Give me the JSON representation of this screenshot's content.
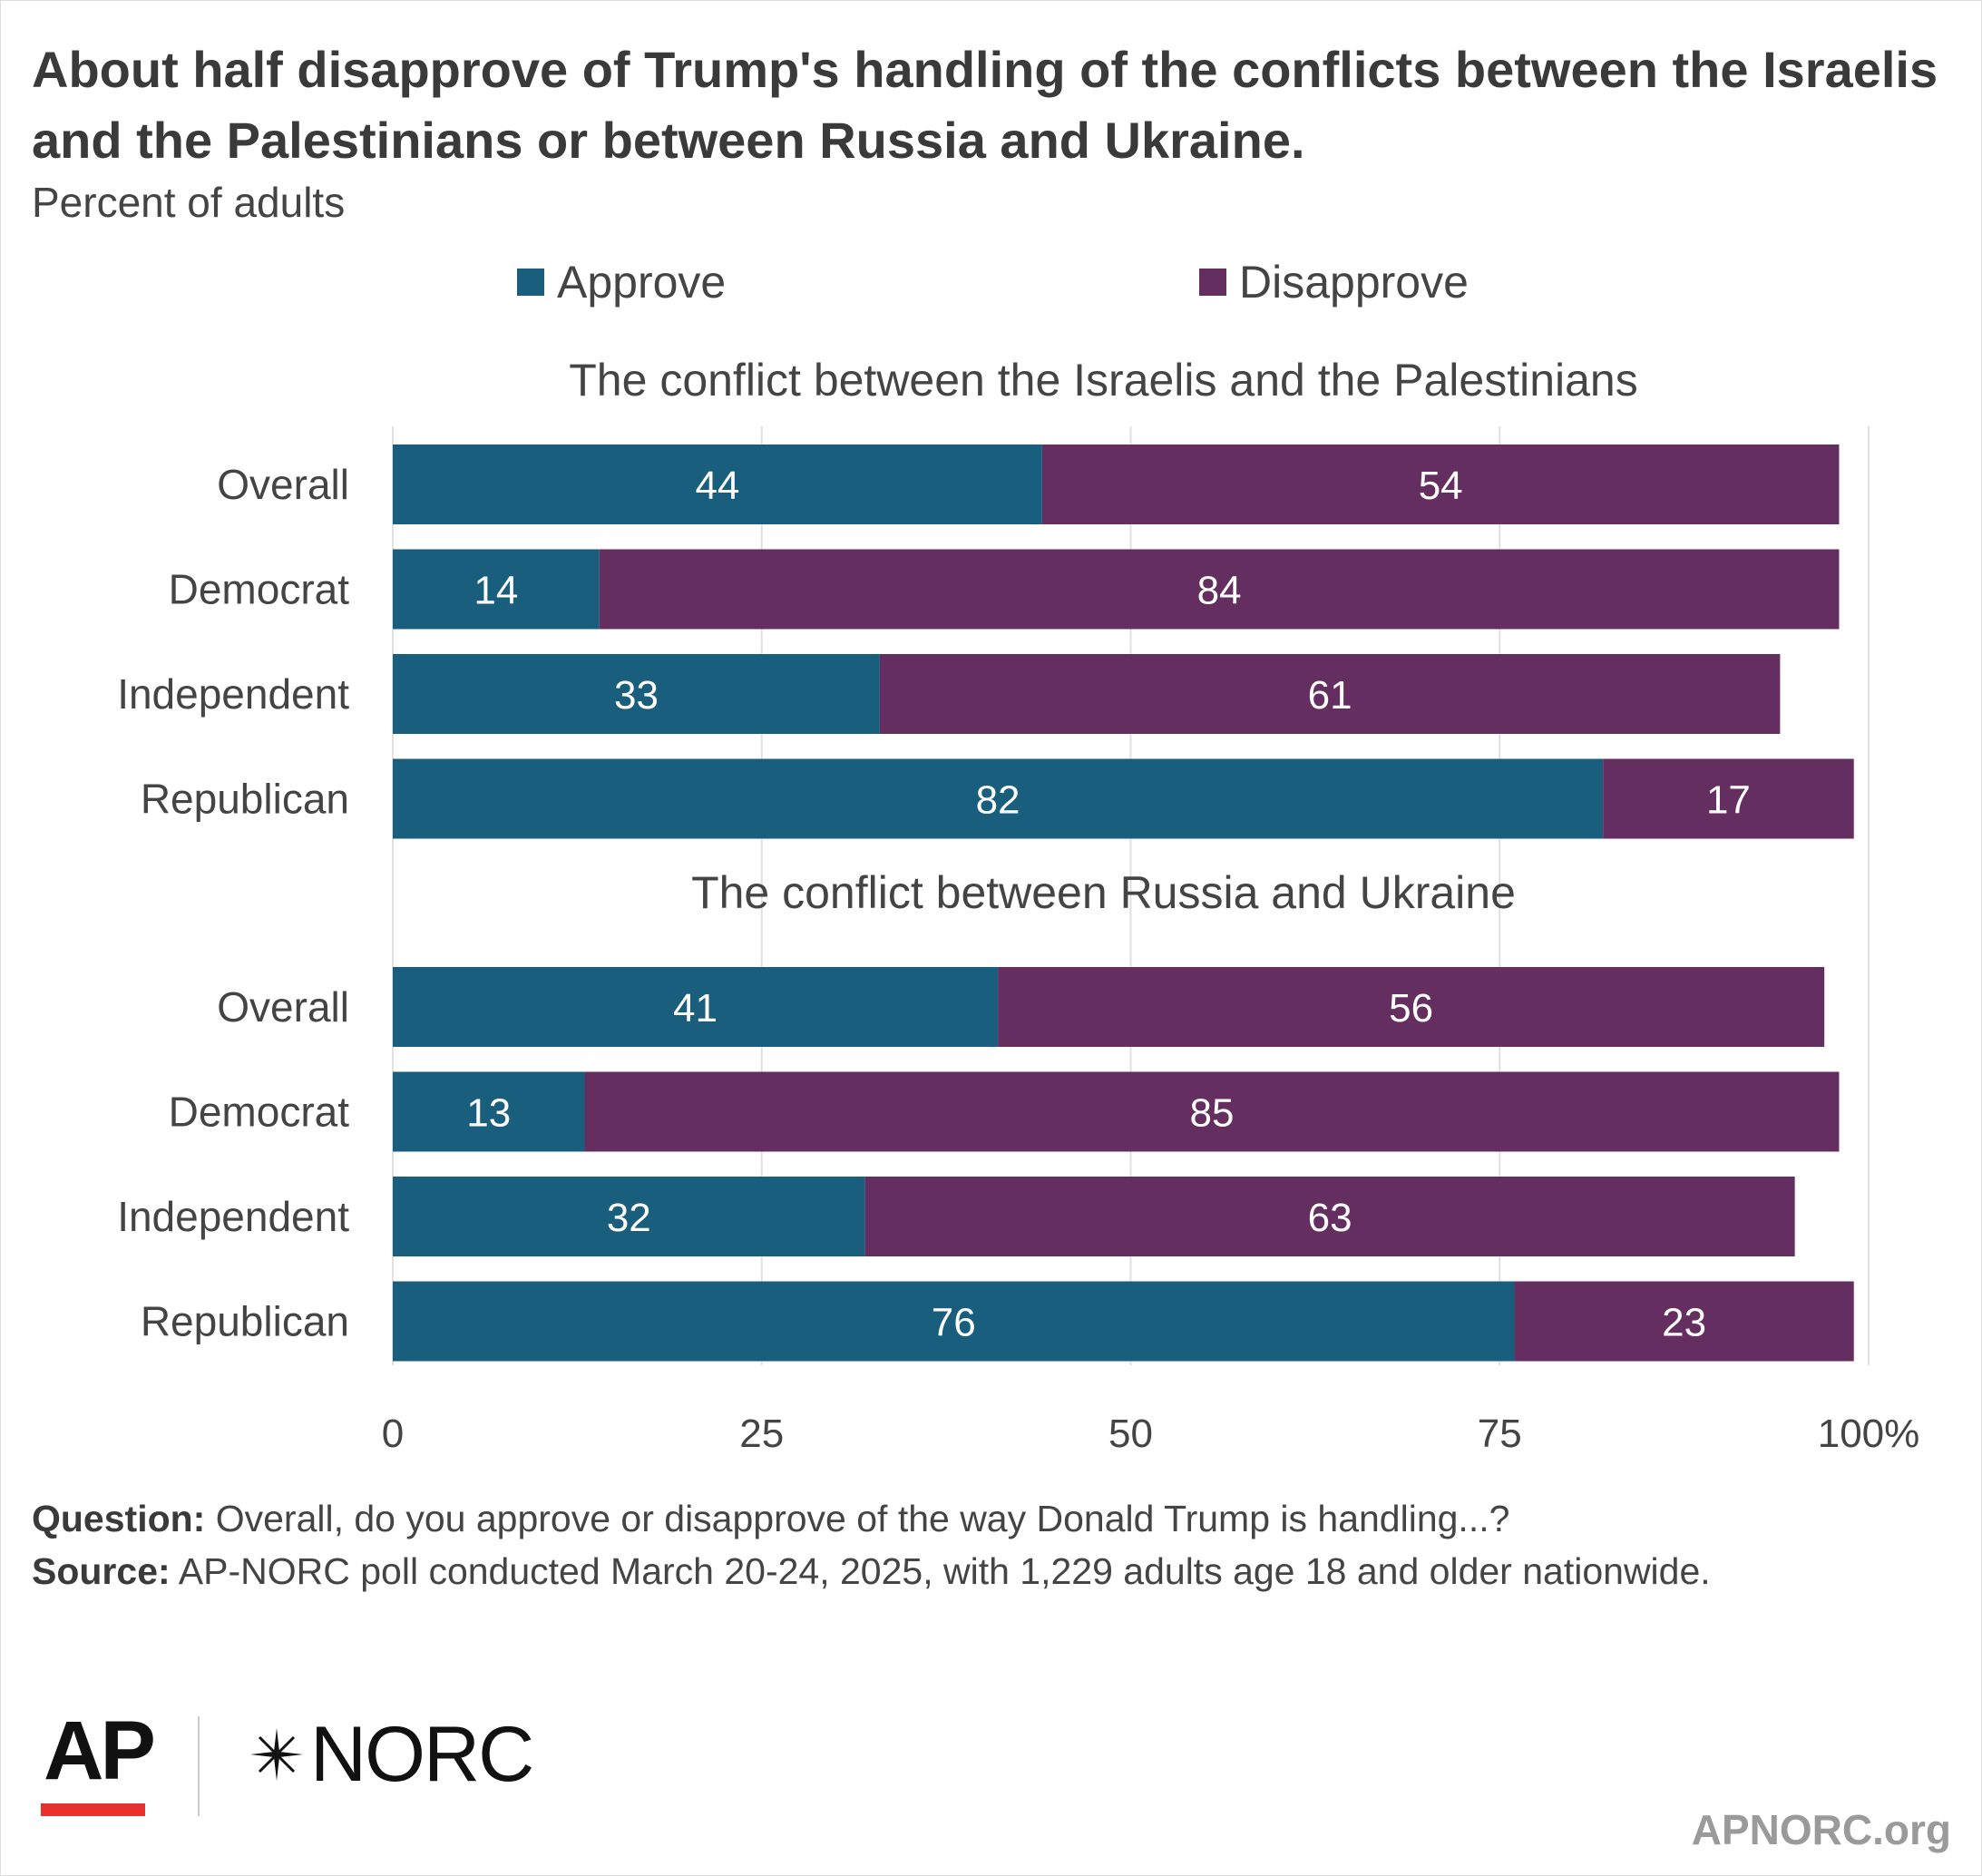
{
  "title": "About half disapprove of Trump's handling of the conflicts between the Israelis and the Palestinians or between Russia and Ukraine.",
  "subtitle": "Percent of adults",
  "legend": [
    {
      "label": "Approve",
      "color": "#1a5e7e"
    },
    {
      "label": "Disapprove",
      "color": "#652e60"
    }
  ],
  "chart_data": {
    "type": "bar",
    "orientation": "horizontal",
    "stacked": true,
    "xlim": [
      0,
      100
    ],
    "x_ticks": [
      "0",
      "25",
      "50",
      "75",
      "100%"
    ],
    "grid": true,
    "legend_position": "top",
    "panels": [
      {
        "title": "The conflict between the Israelis and the Palestinians",
        "categories": [
          "Overall",
          "Democrat",
          "Independent",
          "Republican"
        ],
        "series": [
          {
            "name": "Approve",
            "values": [
              44,
              14,
              33,
              82
            ]
          },
          {
            "name": "Disapprove",
            "values": [
              54,
              84,
              61,
              17
            ]
          }
        ]
      },
      {
        "title": "The conflict between Russia and Ukraine",
        "categories": [
          "Overall",
          "Democrat",
          "Independent",
          "Republican"
        ],
        "series": [
          {
            "name": "Approve",
            "values": [
              41,
              13,
              32,
              76
            ]
          },
          {
            "name": "Disapprove",
            "values": [
              56,
              85,
              63,
              23
            ]
          }
        ]
      }
    ]
  },
  "notes": {
    "question_label": "Question:",
    "question_text": " Overall, do you approve or disapprove of the way Donald Trump is handling...?",
    "source_label": "Source:",
    "source_text": " AP-NORC poll conducted March 20-24, 2025, with 1,229 adults age 18 and older nationwide."
  },
  "logos": {
    "ap": "AP",
    "norc": "NORC"
  },
  "site": "APNORC.org"
}
